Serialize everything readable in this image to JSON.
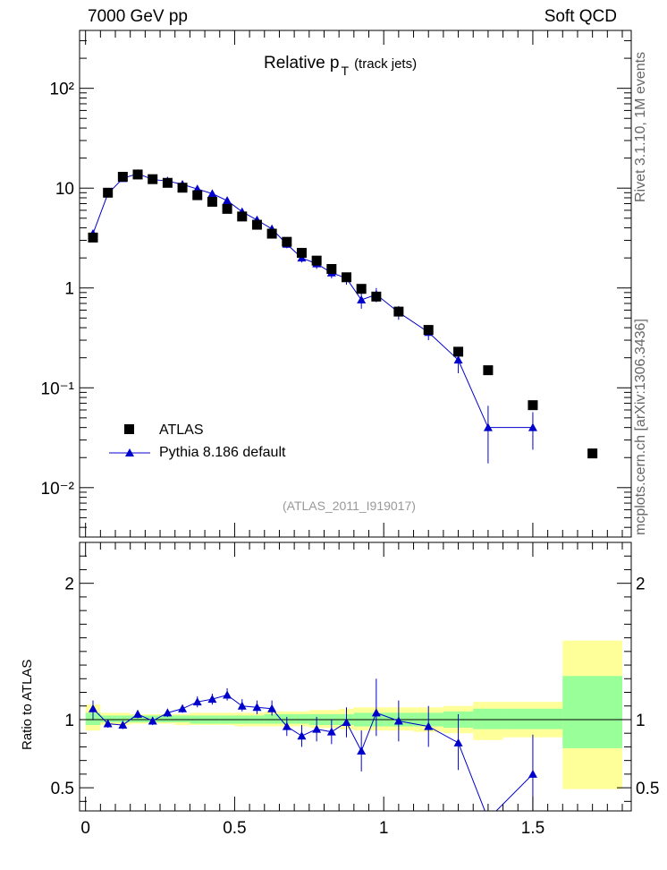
{
  "header": {
    "left": "7000 GeV pp",
    "right": "Soft QCD"
  },
  "side": {
    "rivet": "Rivet 3.1.10, 1M events",
    "mcplots": "mcplots.cern.ch [arXiv:1306.3436]"
  },
  "analysis_id": "(ATLAS_2011_I919017)",
  "colors": {
    "data": "#000000",
    "mc": "#0000cc",
    "band_inner": "#99ff99",
    "band_outer": "#ffff99"
  },
  "chart_data": [
    {
      "type": "scatter",
      "title": "Relative p",
      "title_sub": "T",
      "title_suffix": "(track jets)",
      "xlabel": "",
      "ylabel": "",
      "yscale": "log",
      "xlim": [
        -0.02,
        1.83
      ],
      "ylim": [
        0.0032,
        380
      ],
      "ytick_labels": [
        "10⁻²",
        "10⁻¹",
        "1",
        "10",
        "10²"
      ],
      "legend_position": "lower-left",
      "series": [
        {
          "name": "ATLAS",
          "marker": "square",
          "points": [
            {
              "x": 0.025,
              "y": 3.2
            },
            {
              "x": 0.075,
              "y": 9.0
            },
            {
              "x": 0.125,
              "y": 13.0
            },
            {
              "x": 0.175,
              "y": 13.7
            },
            {
              "x": 0.225,
              "y": 12.3
            },
            {
              "x": 0.275,
              "y": 11.3
            },
            {
              "x": 0.325,
              "y": 10.1
            },
            {
              "x": 0.375,
              "y": 8.5
            },
            {
              "x": 0.425,
              "y": 7.3
            },
            {
              "x": 0.475,
              "y": 6.2
            },
            {
              "x": 0.525,
              "y": 5.2
            },
            {
              "x": 0.575,
              "y": 4.3
            },
            {
              "x": 0.625,
              "y": 3.5
            },
            {
              "x": 0.675,
              "y": 2.9
            },
            {
              "x": 0.725,
              "y": 2.25
            },
            {
              "x": 0.775,
              "y": 1.88
            },
            {
              "x": 0.825,
              "y": 1.55
            },
            {
              "x": 0.875,
              "y": 1.28
            },
            {
              "x": 0.925,
              "y": 0.98
            },
            {
              "x": 0.975,
              "y": 0.82
            },
            {
              "x": 1.05,
              "y": 0.58
            },
            {
              "x": 1.15,
              "y": 0.38
            },
            {
              "x": 1.25,
              "y": 0.23
            },
            {
              "x": 1.35,
              "y": 0.15
            },
            {
              "x": 1.5,
              "y": 0.067
            },
            {
              "x": 1.7,
              "y": 0.022
            }
          ]
        },
        {
          "name": "Pythia 8.186 default",
          "marker": "triangle",
          "points": [
            {
              "x": 0.025,
              "y": 3.5,
              "lo": 3.3,
              "hi": 3.7
            },
            {
              "x": 0.075,
              "y": 8.8,
              "lo": 8.5,
              "hi": 9.1
            },
            {
              "x": 0.125,
              "y": 12.5,
              "lo": 12.2,
              "hi": 12.8
            },
            {
              "x": 0.175,
              "y": 14.0,
              "lo": 13.7,
              "hi": 14.3
            },
            {
              "x": 0.225,
              "y": 12.2,
              "lo": 11.9,
              "hi": 12.5
            },
            {
              "x": 0.275,
              "y": 11.8,
              "lo": 11.5,
              "hi": 12.1
            },
            {
              "x": 0.325,
              "y": 10.9,
              "lo": 10.6,
              "hi": 11.2
            },
            {
              "x": 0.375,
              "y": 9.8,
              "lo": 9.5,
              "hi": 10.1
            },
            {
              "x": 0.425,
              "y": 8.8,
              "lo": 8.5,
              "hi": 9.1
            },
            {
              "x": 0.475,
              "y": 7.5,
              "lo": 7.2,
              "hi": 7.8
            },
            {
              "x": 0.525,
              "y": 5.8,
              "lo": 5.5,
              "hi": 6.1
            },
            {
              "x": 0.575,
              "y": 4.8,
              "lo": 4.5,
              "hi": 5.1
            },
            {
              "x": 0.625,
              "y": 3.9,
              "lo": 3.6,
              "hi": 4.2
            },
            {
              "x": 0.675,
              "y": 2.75,
              "lo": 2.5,
              "hi": 3.0
            },
            {
              "x": 0.725,
              "y": 2.0,
              "lo": 1.8,
              "hi": 2.2
            },
            {
              "x": 0.775,
              "y": 1.75,
              "lo": 1.55,
              "hi": 1.95
            },
            {
              "x": 0.825,
              "y": 1.42,
              "lo": 1.25,
              "hi": 1.6
            },
            {
              "x": 0.875,
              "y": 1.25,
              "lo": 1.08,
              "hi": 1.43
            },
            {
              "x": 0.925,
              "y": 0.76,
              "lo": 0.62,
              "hi": 0.9
            },
            {
              "x": 0.975,
              "y": 0.86,
              "lo": 0.72,
              "hi": 1.0
            },
            {
              "x": 1.05,
              "y": 0.57,
              "lo": 0.48,
              "hi": 0.66
            },
            {
              "x": 1.15,
              "y": 0.36,
              "lo": 0.3,
              "hi": 0.42
            },
            {
              "x": 1.25,
              "y": 0.19,
              "lo": 0.14,
              "hi": 0.24
            },
            {
              "x": 1.35,
              "y": 0.04,
              "lo": 0.0175,
              "hi": 0.066
            },
            {
              "x": 1.5,
              "y": 0.04,
              "lo": 0.024,
              "hi": 0.057
            }
          ]
        }
      ]
    },
    {
      "type": "scatter",
      "title": "",
      "xlabel": "",
      "ylabel": "Ratio to ATLAS",
      "yscale": "linear",
      "xlim": [
        -0.02,
        1.83
      ],
      "ylim": [
        0.33,
        2.3
      ],
      "xticks": [
        0,
        0.5,
        1,
        1.5
      ],
      "xtick_labels": [
        "0",
        "0.5",
        "1",
        "1.5"
      ],
      "yticks": [
        0.5,
        1,
        2
      ],
      "ytick_labels": [
        "0.5",
        "1",
        "2"
      ],
      "reference_line": 1,
      "bands": [
        {
          "x0": 0.0,
          "x1": 0.05,
          "in_lo": 0.96,
          "in_hi": 1.05,
          "out_lo": 0.92,
          "out_hi": 1.11
        },
        {
          "x0": 0.05,
          "x1": 0.1,
          "in_lo": 0.98,
          "in_hi": 1.03,
          "out_lo": 0.96,
          "out_hi": 1.05
        },
        {
          "x0": 0.1,
          "x1": 0.15,
          "in_lo": 0.98,
          "in_hi": 1.03,
          "out_lo": 0.96,
          "out_hi": 1.05
        },
        {
          "x0": 0.15,
          "x1": 0.2,
          "in_lo": 0.98,
          "in_hi": 1.03,
          "out_lo": 0.97,
          "out_hi": 1.04
        },
        {
          "x0": 0.2,
          "x1": 0.25,
          "in_lo": 0.98,
          "in_hi": 1.03,
          "out_lo": 0.97,
          "out_hi": 1.04
        },
        {
          "x0": 0.25,
          "x1": 0.3,
          "in_lo": 0.98,
          "in_hi": 1.03,
          "out_lo": 0.97,
          "out_hi": 1.04
        },
        {
          "x0": 0.3,
          "x1": 0.35,
          "in_lo": 0.98,
          "in_hi": 1.03,
          "out_lo": 0.96,
          "out_hi": 1.04
        },
        {
          "x0": 0.35,
          "x1": 0.4,
          "in_lo": 0.97,
          "in_hi": 1.03,
          "out_lo": 0.96,
          "out_hi": 1.05
        },
        {
          "x0": 0.4,
          "x1": 0.45,
          "in_lo": 0.97,
          "in_hi": 1.03,
          "out_lo": 0.96,
          "out_hi": 1.05
        },
        {
          "x0": 0.45,
          "x1": 0.5,
          "in_lo": 0.97,
          "in_hi": 1.03,
          "out_lo": 0.96,
          "out_hi": 1.05
        },
        {
          "x0": 0.5,
          "x1": 0.55,
          "in_lo": 0.97,
          "in_hi": 1.03,
          "out_lo": 0.95,
          "out_hi": 1.05
        },
        {
          "x0": 0.55,
          "x1": 0.6,
          "in_lo": 0.97,
          "in_hi": 1.03,
          "out_lo": 0.95,
          "out_hi": 1.05
        },
        {
          "x0": 0.6,
          "x1": 0.65,
          "in_lo": 0.97,
          "in_hi": 1.04,
          "out_lo": 0.95,
          "out_hi": 1.06
        },
        {
          "x0": 0.65,
          "x1": 0.7,
          "in_lo": 0.97,
          "in_hi": 1.04,
          "out_lo": 0.95,
          "out_hi": 1.06
        },
        {
          "x0": 0.7,
          "x1": 0.75,
          "in_lo": 0.97,
          "in_hi": 1.04,
          "out_lo": 0.95,
          "out_hi": 1.06
        },
        {
          "x0": 0.75,
          "x1": 0.8,
          "in_lo": 0.96,
          "in_hi": 1.04,
          "out_lo": 0.94,
          "out_hi": 1.07
        },
        {
          "x0": 0.8,
          "x1": 0.85,
          "in_lo": 0.96,
          "in_hi": 1.04,
          "out_lo": 0.94,
          "out_hi": 1.07
        },
        {
          "x0": 0.85,
          "x1": 0.9,
          "in_lo": 0.96,
          "in_hi": 1.04,
          "out_lo": 0.93,
          "out_hi": 1.08
        },
        {
          "x0": 0.9,
          "x1": 0.95,
          "in_lo": 0.95,
          "in_hi": 1.05,
          "out_lo": 0.92,
          "out_hi": 1.09
        },
        {
          "x0": 0.95,
          "x1": 1.0,
          "in_lo": 0.95,
          "in_hi": 1.05,
          "out_lo": 0.92,
          "out_hi": 1.09
        },
        {
          "x0": 1.0,
          "x1": 1.1,
          "in_lo": 0.95,
          "in_hi": 1.05,
          "out_lo": 0.92,
          "out_hi": 1.09
        },
        {
          "x0": 1.1,
          "x1": 1.2,
          "in_lo": 0.95,
          "in_hi": 1.05,
          "out_lo": 0.91,
          "out_hi": 1.09
        },
        {
          "x0": 1.2,
          "x1": 1.3,
          "in_lo": 0.94,
          "in_hi": 1.06,
          "out_lo": 0.9,
          "out_hi": 1.1
        },
        {
          "x0": 1.3,
          "x1": 1.4,
          "in_lo": 0.93,
          "in_hi": 1.08,
          "out_lo": 0.85,
          "out_hi": 1.13
        },
        {
          "x0": 1.4,
          "x1": 1.6,
          "in_lo": 0.93,
          "in_hi": 1.08,
          "out_lo": 0.87,
          "out_hi": 1.13
        },
        {
          "x0": 1.6,
          "x1": 1.8,
          "in_lo": 0.79,
          "in_hi": 1.32,
          "out_lo": 0.49,
          "out_hi": 1.58
        }
      ],
      "series": [
        {
          "name": "Pythia 8.186 default",
          "marker": "triangle",
          "points": [
            {
              "x": 0.025,
              "y": 1.08,
              "lo": 1.0,
              "hi": 1.14
            },
            {
              "x": 0.075,
              "y": 0.97,
              "lo": 0.94,
              "hi": 1.0
            },
            {
              "x": 0.125,
              "y": 0.96,
              "lo": 0.93,
              "hi": 0.99
            },
            {
              "x": 0.175,
              "y": 1.04,
              "lo": 1.01,
              "hi": 1.07
            },
            {
              "x": 0.225,
              "y": 0.99,
              "lo": 0.96,
              "hi": 1.02
            },
            {
              "x": 0.275,
              "y": 1.05,
              "lo": 1.02,
              "hi": 1.08
            },
            {
              "x": 0.325,
              "y": 1.08,
              "lo": 1.05,
              "hi": 1.11
            },
            {
              "x": 0.375,
              "y": 1.13,
              "lo": 1.09,
              "hi": 1.17
            },
            {
              "x": 0.425,
              "y": 1.15,
              "lo": 1.11,
              "hi": 1.19
            },
            {
              "x": 0.475,
              "y": 1.18,
              "lo": 1.14,
              "hi": 1.23
            },
            {
              "x": 0.525,
              "y": 1.1,
              "lo": 1.06,
              "hi": 1.15
            },
            {
              "x": 0.575,
              "y": 1.09,
              "lo": 1.04,
              "hi": 1.14
            },
            {
              "x": 0.625,
              "y": 1.08,
              "lo": 1.03,
              "hi": 1.14
            },
            {
              "x": 0.675,
              "y": 0.95,
              "lo": 0.88,
              "hi": 1.02
            },
            {
              "x": 0.725,
              "y": 0.88,
              "lo": 0.8,
              "hi": 0.96
            },
            {
              "x": 0.775,
              "y": 0.93,
              "lo": 0.84,
              "hi": 1.02
            },
            {
              "x": 0.825,
              "y": 0.91,
              "lo": 0.82,
              "hi": 1.0
            },
            {
              "x": 0.875,
              "y": 0.98,
              "lo": 0.87,
              "hi": 1.09
            },
            {
              "x": 0.925,
              "y": 0.77,
              "lo": 0.62,
              "hi": 0.92
            },
            {
              "x": 0.975,
              "y": 1.05,
              "lo": 0.88,
              "hi": 1.3
            },
            {
              "x": 1.05,
              "y": 0.99,
              "lo": 0.84,
              "hi": 1.14
            },
            {
              "x": 1.15,
              "y": 0.95,
              "lo": 0.8,
              "hi": 1.1
            },
            {
              "x": 1.25,
              "y": 0.83,
              "lo": 0.63,
              "hi": 1.04
            },
            {
              "x": 1.35,
              "y": 0.27
            },
            {
              "x": 1.5,
              "y": 0.6,
              "lo": 0.3,
              "hi": 0.89
            }
          ]
        }
      ]
    }
  ]
}
